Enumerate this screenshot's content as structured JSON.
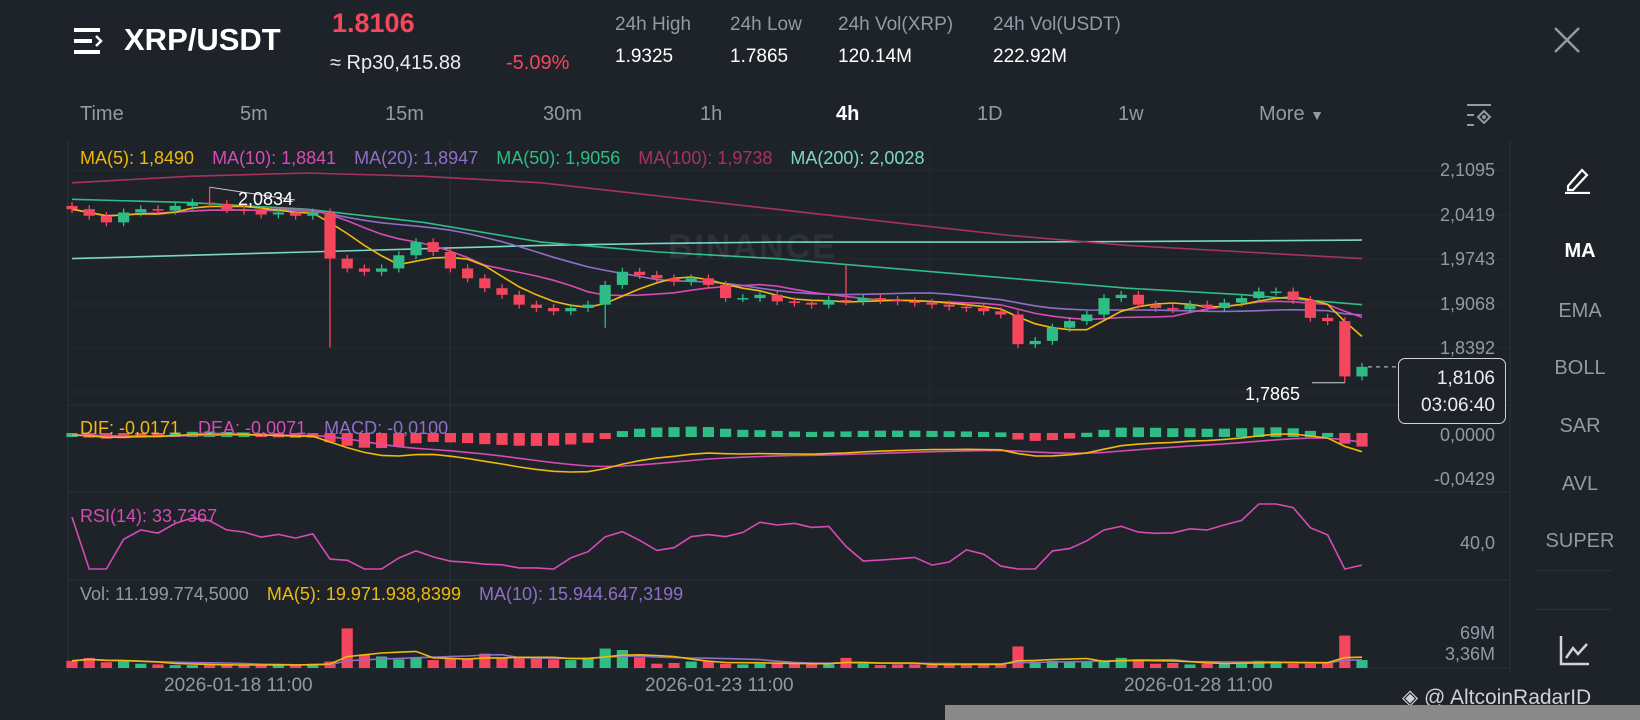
{
  "header": {
    "pair": "XRP/USDT",
    "price": "1.8106",
    "fiat": "≈ Rp30,415.88",
    "change": "-5.09%",
    "stats": [
      {
        "label": "24h High",
        "value": "1.9325"
      },
      {
        "label": "24h Low",
        "value": "1.7865"
      },
      {
        "label": "24h Vol(XRP)",
        "value": "120.14M"
      },
      {
        "label": "24h Vol(USDT)",
        "value": "222.92M"
      }
    ]
  },
  "tabs": [
    "Time",
    "5m",
    "15m",
    "30m",
    "1h",
    "4h",
    "1D",
    "1w",
    "More"
  ],
  "active_tab": "4h",
  "ma_legend": [
    {
      "text": "MA(5): 1,8490",
      "color": "#f0b90b"
    },
    {
      "text": "MA(10): 1,8841",
      "color": "#d64bb4"
    },
    {
      "text": "MA(20): 1,8947",
      "color": "#8e6fc8"
    },
    {
      "text": "MA(50): 1,9056",
      "color": "#2ebd85"
    },
    {
      "text": "MA(100): 1,9738",
      "color": "#a8325e"
    },
    {
      "text": "MA(200): 2,0028",
      "color": "#7ad8c4"
    }
  ],
  "macd_legend": [
    {
      "text": "DIF: -0,0171",
      "color": "#f0b90b"
    },
    {
      "text": "DEA: -0,0071",
      "color": "#d64bb4"
    },
    {
      "text": "MACD: -0,0100",
      "color": "#8e6fc8"
    }
  ],
  "rsi_legend": {
    "text": "RSI(14): 33,7367",
    "color": "#d64bb4"
  },
  "vol_legend": [
    {
      "text": "Vol: 11.199.774,5000",
      "color": "#929aa5"
    },
    {
      "text": "MA(5): 19.971.938,8399",
      "color": "#f0b90b"
    },
    {
      "text": "MA(10): 15.944.647,3199",
      "color": "#8e6fc8"
    }
  ],
  "price_axis": [
    "2,1095",
    "2,0419",
    "1,9743",
    "1,9068",
    "1,8392"
  ],
  "macd_axis": [
    "0,0000",
    "-0,0429"
  ],
  "rsi_axis": [
    "40,0"
  ],
  "vol_axis": [
    "69M",
    "3,36M"
  ],
  "dates": [
    "2026-01-18 11:00",
    "2026-01-23 11:00",
    "2026-01-28 11:00"
  ],
  "annotations": {
    "high": "2,0834",
    "low": "1,7865",
    "last_price": "1,8106",
    "countdown": "03:06:40"
  },
  "watermark": "BINANCE",
  "credit": "@ AltcoinRadarID",
  "sidebar": [
    "MA",
    "EMA",
    "BOLL",
    "SAR",
    "AVL",
    "SUPER"
  ],
  "colors": {
    "up": "#2ebd85",
    "down": "#f6465d",
    "bg": "#1e2329"
  },
  "chart_data": {
    "type": "candlestick",
    "timeframe": "4h",
    "close": [
      2.05,
      2.04,
      2.03,
      2.045,
      2.05,
      2.048,
      2.055,
      2.06,
      2.058,
      2.05,
      2.048,
      2.042,
      2.045,
      2.04,
      2.045,
      1.975,
      1.96,
      1.955,
      1.96,
      1.98,
      2.0,
      1.985,
      1.96,
      1.945,
      1.93,
      1.92,
      1.905,
      1.9,
      1.895,
      1.9,
      1.905,
      1.935,
      1.955,
      1.95,
      1.945,
      1.94,
      1.945,
      1.935,
      1.915,
      1.915,
      1.92,
      1.91,
      1.908,
      1.905,
      1.912,
      1.91,
      1.915,
      1.912,
      1.91,
      1.908,
      1.905,
      1.902,
      1.9,
      1.895,
      1.89,
      1.845,
      1.85,
      1.87,
      1.88,
      1.89,
      1.915,
      1.92,
      1.905,
      1.9,
      1.898,
      1.905,
      1.9,
      1.908,
      1.915,
      1.925,
      1.925,
      1.912,
      1.885,
      1.88,
      1.796,
      1.8106
    ],
    "volume_m": [
      10,
      14,
      8,
      9,
      6,
      5,
      4,
      4,
      5,
      4,
      4,
      4,
      5,
      4,
      6,
      9,
      55,
      18,
      16,
      12,
      14,
      11,
      13,
      12,
      20,
      14,
      15,
      13,
      12,
      11,
      14,
      27,
      25,
      15,
      6,
      7,
      9,
      10,
      6,
      5,
      6,
      6,
      8,
      5,
      5,
      14,
      7,
      4,
      5,
      5,
      4,
      6,
      4,
      5,
      5,
      30,
      9,
      10,
      8,
      9,
      10,
      14,
      12,
      6,
      7,
      5,
      6,
      7,
      8,
      10,
      8,
      6,
      6,
      7,
      45,
      11
    ],
    "ma50": [
      2.065,
      2.06,
      2.05,
      2.03,
      2.0,
      1.985,
      1.975,
      1.96,
      1.945,
      1.93,
      1.92,
      1.905
    ],
    "ma100": [
      2.09,
      2.1,
      2.105,
      2.1,
      2.09,
      2.07,
      2.05,
      2.03,
      2.01,
      1.995,
      1.985,
      1.975
    ],
    "ma200": [
      1.975,
      1.98,
      1.985,
      1.99,
      1.995,
      1.998,
      2.0,
      2.0,
      2.0,
      2.001,
      2.002,
      2.003
    ],
    "ylim": [
      1.77,
      2.125
    ]
  }
}
